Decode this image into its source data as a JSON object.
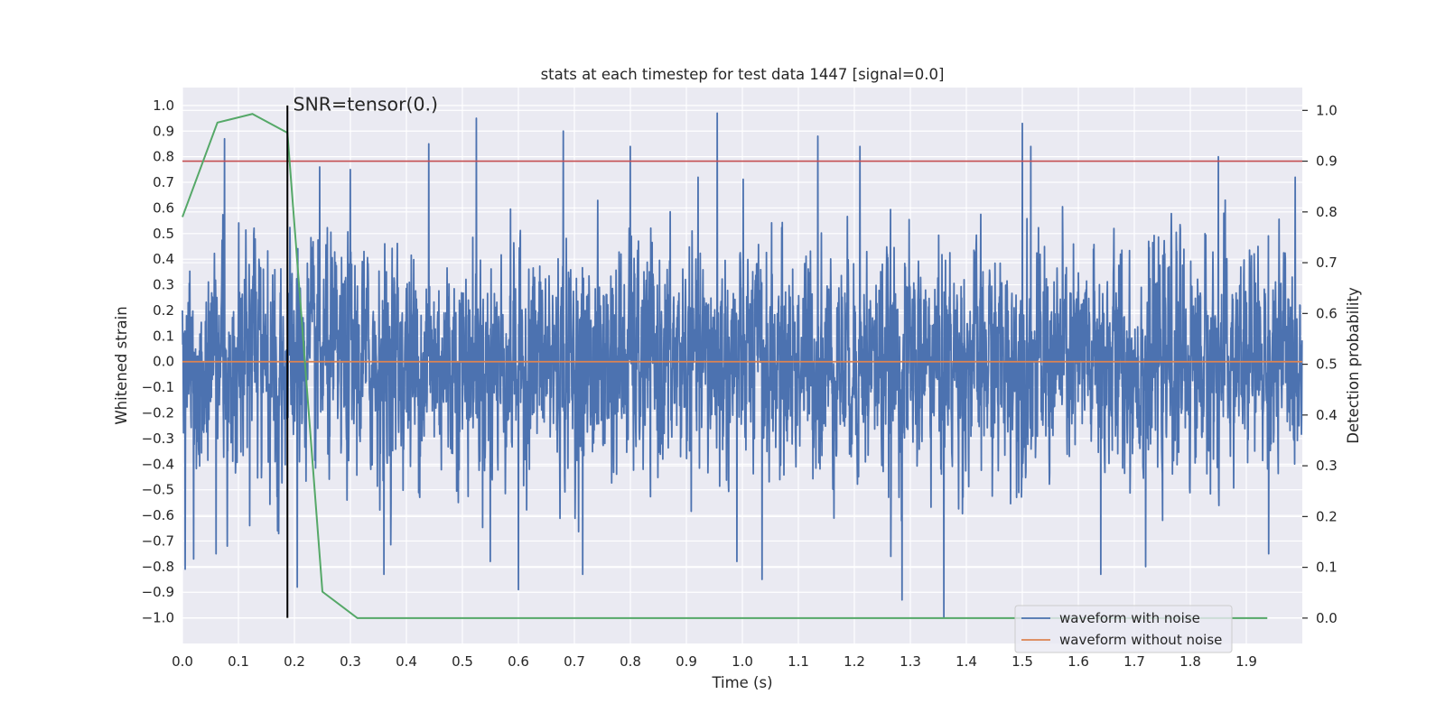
{
  "chart_data": {
    "type": "line",
    "title": "stats at each timestep for test data 1447 [signal=0.0]",
    "xlabel": "Time (s)",
    "ylabel": "Whitened strain",
    "y2label": "Detection probability",
    "xlim": [
      0.0,
      2.0
    ],
    "ylim": [
      -1.1,
      1.07
    ],
    "y2lim": [
      -0.05,
      1.045
    ],
    "x_ticks": [
      0.0,
      0.1,
      0.2,
      0.3,
      0.4,
      0.5,
      0.6,
      0.7,
      0.8,
      0.9,
      1.0,
      1.1,
      1.2,
      1.3,
      1.4,
      1.5,
      1.6,
      1.7,
      1.8,
      1.9
    ],
    "x_tick_labels": [
      "0.0",
      "0.1",
      "0.2",
      "0.3",
      "0.4",
      "0.5",
      "0.6",
      "0.7",
      "0.8",
      "0.9",
      "1.0",
      "1.1",
      "1.2",
      "1.3",
      "1.4",
      "1.5",
      "1.6",
      "1.7",
      "1.8",
      "1.9"
    ],
    "y_ticks": [
      -1.0,
      -0.9,
      -0.8,
      -0.7,
      -0.6,
      -0.5,
      -0.4,
      -0.3,
      -0.2,
      -0.1,
      0.0,
      0.1,
      0.2,
      0.3,
      0.4,
      0.5,
      0.6,
      0.7,
      0.8,
      0.9,
      1.0
    ],
    "y_tick_labels": [
      "−1.0",
      "−0.9",
      "−0.8",
      "−0.7",
      "−0.6",
      "−0.5",
      "−0.4",
      "−0.3",
      "−0.2",
      "−0.1",
      "0.0",
      "0.1",
      "0.2",
      "0.3",
      "0.4",
      "0.5",
      "0.6",
      "0.7",
      "0.8",
      "0.9",
      "1.0"
    ],
    "y2_ticks": [
      0.0,
      0.1,
      0.2,
      0.3,
      0.4,
      0.5,
      0.6,
      0.7,
      0.8,
      0.9,
      1.0
    ],
    "y2_tick_labels": [
      "0.0",
      "0.1",
      "0.2",
      "0.3",
      "0.4",
      "0.5",
      "0.6",
      "0.7",
      "0.8",
      "0.9",
      "1.0"
    ],
    "grid": true,
    "legend_position": "bottom-right",
    "series": [
      {
        "name": "waveform with noise",
        "color": "#4c72b0",
        "axis": "left",
        "sample_rate_hz": 2048,
        "duration_s": 2.0,
        "typical_amplitude": 0.22,
        "peaks": [
          {
            "x": 0.005,
            "y": -0.81
          },
          {
            "x": 0.02,
            "y": -0.77
          },
          {
            "x": 0.06,
            "y": -0.75
          },
          {
            "x": 0.075,
            "y": 0.87
          },
          {
            "x": 0.08,
            "y": -0.72
          },
          {
            "x": 0.12,
            "y": -0.64
          },
          {
            "x": 0.17,
            "y": -0.66
          },
          {
            "x": 0.205,
            "y": -0.88
          },
          {
            "x": 0.245,
            "y": 0.76
          },
          {
            "x": 0.3,
            "y": 0.75
          },
          {
            "x": 0.36,
            "y": -0.83
          },
          {
            "x": 0.44,
            "y": 0.85
          },
          {
            "x": 0.525,
            "y": 0.95
          },
          {
            "x": 0.55,
            "y": -0.78
          },
          {
            "x": 0.6,
            "y": -0.89
          },
          {
            "x": 0.68,
            "y": 0.9
          },
          {
            "x": 0.715,
            "y": -0.83
          },
          {
            "x": 0.8,
            "y": 0.84
          },
          {
            "x": 0.955,
            "y": 0.97
          },
          {
            "x": 0.99,
            "y": -0.78
          },
          {
            "x": 1.035,
            "y": -0.85
          },
          {
            "x": 1.135,
            "y": 0.88
          },
          {
            "x": 1.21,
            "y": 0.84
          },
          {
            "x": 1.265,
            "y": -0.76
          },
          {
            "x": 1.285,
            "y": -0.93
          },
          {
            "x": 1.36,
            "y": -1.0
          },
          {
            "x": 1.5,
            "y": 0.93
          },
          {
            "x": 1.515,
            "y": 0.84
          },
          {
            "x": 1.64,
            "y": -0.83
          },
          {
            "x": 1.72,
            "y": -0.8
          },
          {
            "x": 1.85,
            "y": 0.8
          },
          {
            "x": 1.94,
            "y": -0.75
          }
        ]
      },
      {
        "name": "waveform without noise",
        "color": "#dd8452",
        "axis": "left",
        "x": [
          0.0,
          2.0
        ],
        "y": [
          0.0,
          0.0
        ]
      },
      {
        "name": "detection probability",
        "color": "#55a868",
        "axis": "right",
        "x": [
          0.0,
          0.0625,
          0.125,
          0.1875,
          0.25,
          0.3125,
          0.375,
          1.0,
          1.5,
          1.9375
        ],
        "y": [
          0.79,
          0.976,
          0.993,
          0.956,
          0.052,
          0.0,
          0.0,
          0.0,
          0.0,
          0.0
        ]
      }
    ],
    "threshold_line": {
      "axis": "right",
      "y": 0.9,
      "color": "#c44e52"
    },
    "event_line": {
      "x": 0.1875,
      "ymin": -1.0,
      "ymax": 1.0,
      "color": "#000000"
    },
    "annotation": {
      "text": "SNR=tensor(0.)",
      "x": 0.1975,
      "y": 0.98
    }
  }
}
